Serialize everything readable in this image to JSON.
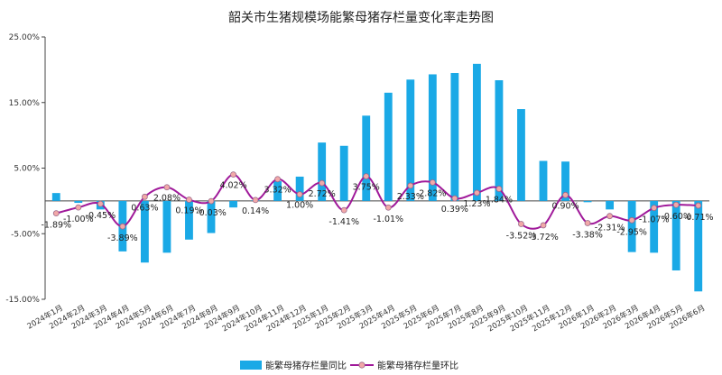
{
  "chart_data": {
    "type": "bar+line",
    "title": "韶关市生猪规模场能繁母猪存栏量变化率走势图",
    "categories": [
      "2024年1月",
      "2024年2月",
      "2024年3月",
      "2024年4月",
      "2024年5月",
      "2024年6月",
      "2024年7月",
      "2024年8月",
      "2024年9月",
      "2024年10月",
      "2024年11月",
      "2024年12月",
      "2025年1月",
      "2025年2月",
      "2025年3月",
      "2025年4月",
      "2025年5月",
      "2025年6月",
      "2025年7月",
      "2025年8月",
      "2025年9月",
      "2025年10月",
      "2025年11月",
      "2025年12月",
      "2026年1月",
      "2026年2月",
      "2026年3月",
      "2026年4月",
      "2026年5月",
      "2026年6月"
    ],
    "ylim": [
      -15,
      25
    ],
    "yticks": [
      "25.00%",
      "15.00%",
      "5.00%",
      "-5.00%",
      "-15.00%"
    ],
    "ytick_values": [
      25,
      15,
      5,
      -5,
      -15
    ],
    "series": [
      {
        "name": "能繁母猪存栏量同比",
        "type": "bar",
        "color": "#1aa9e6",
        "values": [
          1.2,
          -0.3,
          -1.3,
          -7.7,
          -9.4,
          -7.9,
          -5.9,
          -4.9,
          -1.0,
          0.1,
          3.0,
          3.7,
          8.9,
          8.4,
          13.0,
          16.5,
          18.5,
          19.3,
          19.5,
          20.9,
          18.4,
          14.0,
          6.1,
          6.0,
          -0.2,
          -1.3,
          -7.8,
          -7.9,
          -10.6,
          -13.8
        ]
      },
      {
        "name": "能繁母猪存栏量环比",
        "type": "line",
        "color": "#a0199a",
        "marker_color": "#f2a8a8",
        "values": [
          -1.89,
          -1.0,
          -0.45,
          -3.89,
          0.63,
          2.08,
          0.19,
          -0.03,
          4.02,
          0.14,
          3.32,
          1.0,
          2.72,
          -1.41,
          3.75,
          -1.01,
          2.33,
          2.82,
          0.39,
          1.23,
          1.84,
          -3.52,
          -3.72,
          0.9,
          -3.38,
          -2.31,
          -2.95,
          -1.07,
          -0.6,
          -0.71
        ],
        "labels": [
          "-1.89%",
          "-1.00%",
          "-0.45%",
          "-3.89%",
          "0.63%",
          "2.08%",
          "0.19%",
          "-0.03%",
          "4.02%",
          "0.14%",
          "3.32%",
          "1.00%",
          "2.72%",
          "-1.41%",
          "3.75%",
          "-1.01%",
          "2.33%",
          "2.82%",
          "0.39%",
          "1.23%",
          "1.84%",
          "-3.52%",
          "-3.72%",
          "0.90%",
          "-3.38%",
          "-2.31%",
          "-2.95%",
          "-1.07%",
          "-0.60%",
          "-0.71%"
        ]
      }
    ],
    "legend_position": "bottom",
    "grid": false
  }
}
